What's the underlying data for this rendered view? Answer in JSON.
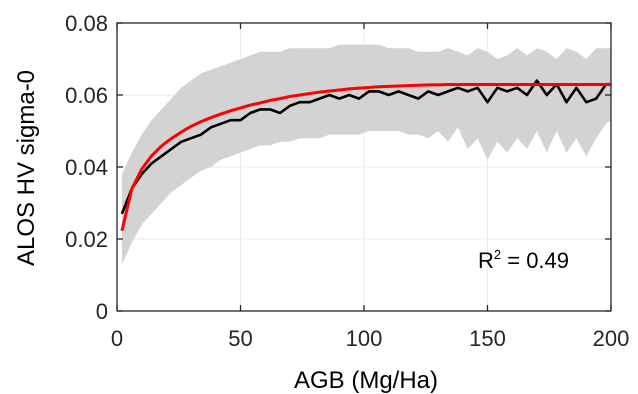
{
  "chart_data": {
    "type": "line",
    "xlabel": "AGB (Mg/Ha)",
    "ylabel": "ALOS HV sigma-0",
    "xlim": [
      0,
      200
    ],
    "ylim": [
      0,
      0.08
    ],
    "xticks": [
      0,
      50,
      100,
      150,
      200
    ],
    "yticks": [
      0,
      0.02,
      0.04,
      0.06,
      0.08
    ],
    "xtick_labels": [
      "0",
      "50",
      "100",
      "150",
      "200"
    ],
    "ytick_labels": [
      "0",
      "0.02",
      "0.04",
      "0.06",
      "0.08"
    ],
    "grid": true,
    "annotation": {
      "prefix": "R",
      "sup": "2",
      "suffix": " = 0.49"
    },
    "x": [
      2,
      6,
      10,
      14,
      18,
      22,
      26,
      30,
      34,
      38,
      42,
      46,
      50,
      54,
      58,
      62,
      66,
      70,
      74,
      78,
      82,
      86,
      90,
      94,
      98,
      102,
      106,
      110,
      114,
      118,
      122,
      126,
      130,
      134,
      138,
      142,
      146,
      150,
      154,
      158,
      162,
      166,
      170,
      174,
      178,
      182,
      186,
      190,
      194,
      198,
      200
    ],
    "series": [
      {
        "role": "band",
        "upper": [
          0.038,
          0.044,
          0.049,
          0.053,
          0.056,
          0.059,
          0.062,
          0.064,
          0.066,
          0.067,
          0.068,
          0.069,
          0.07,
          0.071,
          0.072,
          0.072,
          0.072,
          0.073,
          0.073,
          0.073,
          0.073,
          0.073,
          0.074,
          0.074,
          0.074,
          0.074,
          0.074,
          0.073,
          0.073,
          0.073,
          0.072,
          0.072,
          0.072,
          0.073,
          0.072,
          0.071,
          0.073,
          0.072,
          0.07,
          0.071,
          0.073,
          0.071,
          0.073,
          0.072,
          0.07,
          0.073,
          0.072,
          0.07,
          0.073,
          0.073,
          0.073
        ],
        "lower": [
          0.013,
          0.019,
          0.024,
          0.027,
          0.03,
          0.033,
          0.035,
          0.037,
          0.039,
          0.04,
          0.042,
          0.043,
          0.044,
          0.045,
          0.046,
          0.046,
          0.047,
          0.047,
          0.048,
          0.048,
          0.048,
          0.049,
          0.049,
          0.049,
          0.049,
          0.05,
          0.05,
          0.05,
          0.05,
          0.049,
          0.049,
          0.048,
          0.05,
          0.047,
          0.051,
          0.045,
          0.048,
          0.042,
          0.047,
          0.044,
          0.048,
          0.045,
          0.05,
          0.044,
          0.05,
          0.044,
          0.048,
          0.043,
          0.048,
          0.052,
          0.053
        ]
      },
      {
        "role": "observed",
        "color": "#000000",
        "values": [
          0.027,
          0.034,
          0.038,
          0.041,
          0.043,
          0.045,
          0.047,
          0.048,
          0.049,
          0.051,
          0.052,
          0.053,
          0.053,
          0.055,
          0.056,
          0.056,
          0.055,
          0.057,
          0.058,
          0.058,
          0.059,
          0.06,
          0.059,
          0.06,
          0.059,
          0.061,
          0.061,
          0.06,
          0.061,
          0.06,
          0.059,
          0.061,
          0.06,
          0.061,
          0.062,
          0.061,
          0.062,
          0.058,
          0.062,
          0.061,
          0.062,
          0.06,
          0.064,
          0.06,
          0.063,
          0.058,
          0.062,
          0.058,
          0.059,
          0.063,
          0.063
        ]
      },
      {
        "role": "fit",
        "color": "#ff0000",
        "values": [
          0.0223,
          0.0339,
          0.0394,
          0.0431,
          0.0458,
          0.0479,
          0.0497,
          0.0513,
          0.0526,
          0.0537,
          0.0547,
          0.0556,
          0.0564,
          0.0572,
          0.0578,
          0.0585,
          0.059,
          0.0596,
          0.06,
          0.0604,
          0.0608,
          0.0611,
          0.0614,
          0.0617,
          0.0619,
          0.0621,
          0.0623,
          0.0624,
          0.0625,
          0.0626,
          0.0627,
          0.0628,
          0.0628,
          0.0629,
          0.0629,
          0.0629,
          0.0629,
          0.0629,
          0.0629,
          0.0629,
          0.0629,
          0.0629,
          0.0629,
          0.0629,
          0.0629,
          0.0629,
          0.0629,
          0.0629,
          0.0629,
          0.0629,
          0.0629
        ]
      }
    ],
    "colors": {
      "band": "#d3d3d3",
      "grid": "#ebebeb",
      "axis": "#262626"
    }
  }
}
